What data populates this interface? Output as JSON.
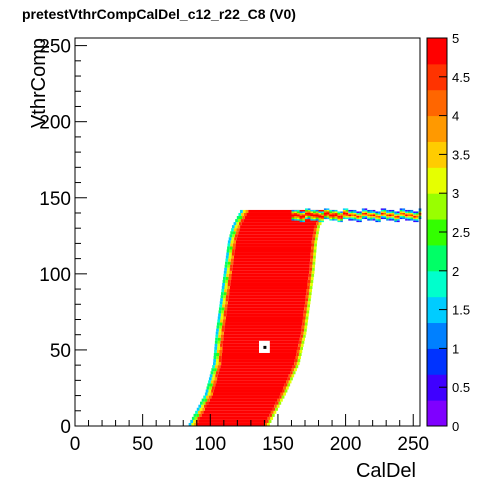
{
  "chart_data": {
    "type": "heatmap",
    "title": "pretestVthrCompCalDel_c12_r22_C8 (V0)",
    "xlabel": "CalDel",
    "ylabel": "VthrComp",
    "xlim": [
      0,
      255
    ],
    "ylim": [
      0,
      255
    ],
    "zlim": [
      0,
      5
    ],
    "x_ticks": [
      "0",
      "50",
      "100",
      "150",
      "200",
      "250"
    ],
    "y_ticks": [
      "0",
      "50",
      "100",
      "150",
      "200",
      "250"
    ],
    "z_ticks": [
      "0",
      "0.5",
      "1",
      "1.5",
      "2",
      "2.5",
      "3",
      "3.5",
      "4",
      "4.5",
      "5"
    ],
    "palette": [
      "#7f00ff",
      "#3f00ff",
      "#0033ff",
      "#0080ff",
      "#00ccff",
      "#00ffcc",
      "#00ff66",
      "#33ff00",
      "#99ff00",
      "#e6ff00",
      "#ffcc00",
      "#ff9900",
      "#ff6600",
      "#ff3300",
      "#ff0000"
    ],
    "region": {
      "description_value": 5,
      "left_edge": [
        [
          0,
          90
        ],
        [
          20,
          102
        ],
        [
          40,
          108
        ],
        [
          60,
          110
        ],
        [
          80,
          113
        ],
        [
          100,
          116
        ],
        [
          120,
          119
        ],
        [
          130,
          122
        ],
        [
          135,
          125
        ]
      ],
      "right_edge": [
        [
          0,
          140
        ],
        [
          20,
          152
        ],
        [
          40,
          162
        ],
        [
          60,
          167
        ],
        [
          80,
          170
        ],
        [
          100,
          173
        ],
        [
          120,
          175
        ],
        [
          130,
          177
        ],
        [
          135,
          180
        ]
      ],
      "top_plateau": {
        "x": [
          125,
          255
        ],
        "y": [
          135,
          141
        ]
      },
      "hole": {
        "x": 140,
        "y": 52,
        "value": 0
      }
    },
    "grid": false,
    "legend": "color scale right"
  }
}
